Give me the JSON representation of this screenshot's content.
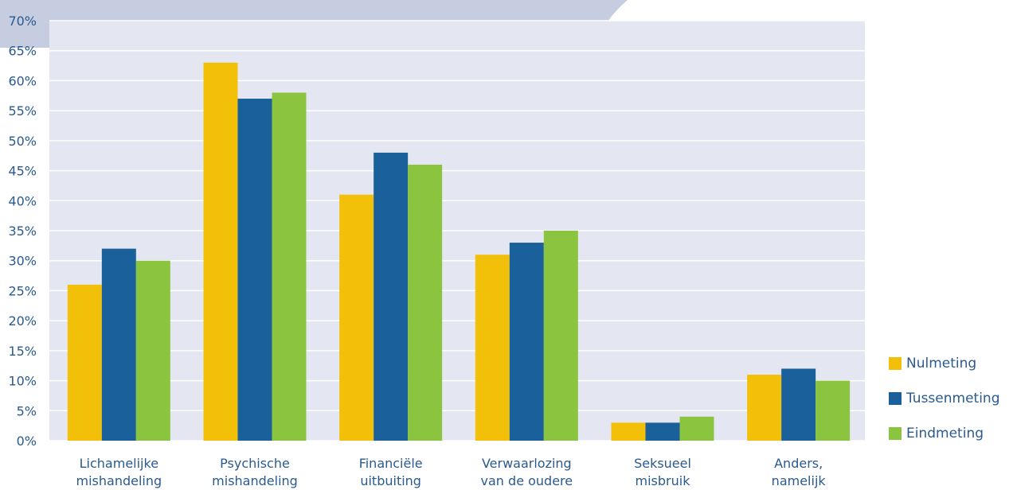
{
  "colors": {
    "plot_bg": "#e4e7f1",
    "header_band": "#c6cde0",
    "grid": "#ffffff",
    "text": "#2b5a8e"
  },
  "chart_data": {
    "type": "bar",
    "categories": [
      [
        "Lichamelijke",
        "mishandeling"
      ],
      [
        "Psychische",
        "mishandeling"
      ],
      [
        "Financiële",
        "uitbuiting"
      ],
      [
        "Verwaarlozing",
        "van de oudere"
      ],
      [
        "Seksueel",
        "misbruik"
      ],
      [
        "Anders,",
        "namelijk"
      ]
    ],
    "series": [
      {
        "name": "Nulmeting",
        "color": "#f2c009",
        "values": [
          26,
          63,
          41,
          31,
          3,
          11
        ]
      },
      {
        "name": "Tussenmeting",
        "color": "#1a619c",
        "values": [
          32,
          57,
          48,
          33,
          3,
          12
        ]
      },
      {
        "name": "Eindmeting",
        "color": "#8bc43f",
        "values": [
          30,
          58,
          46,
          35,
          4,
          10
        ]
      }
    ],
    "ylim": [
      0,
      70
    ],
    "yticks": [
      0,
      5,
      10,
      15,
      20,
      25,
      30,
      35,
      40,
      45,
      50,
      55,
      60,
      65,
      70
    ],
    "ytick_suffix": "%",
    "grid": true,
    "legend_position": "right"
  }
}
